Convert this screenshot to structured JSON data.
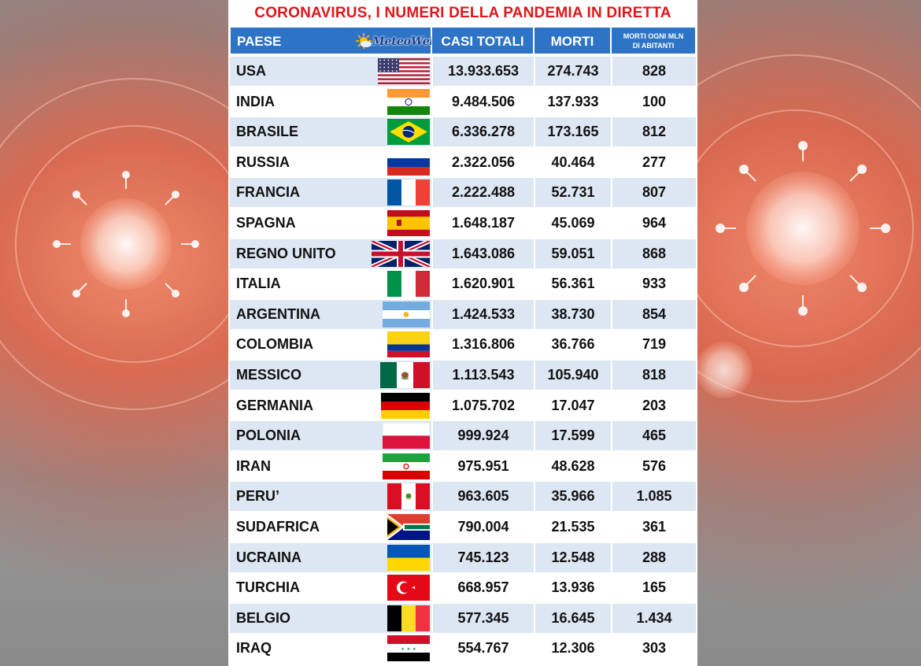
{
  "title": "CORONAVIRUS, I NUMERI DELLA PANDEMIA IN DIRETTA",
  "logo": {
    "text": "MeteoWeb"
  },
  "colors": {
    "title": "#e0151b",
    "header": "#2e74c6",
    "row_alt": "#dde6f3"
  },
  "headers": {
    "country": "PAESE",
    "cases": "CASI TOTALI",
    "deaths": "MORTI",
    "per_million_1": "MORTI OGNI MLN",
    "per_million_2": "DI ABITANTI"
  },
  "rows": [
    {
      "country": "USA",
      "flag": "us-flag",
      "cases": "13.933.653",
      "deaths": "274.743",
      "per_million": "828"
    },
    {
      "country": "INDIA",
      "flag": "india-flag",
      "cases": "9.484.506",
      "deaths": "137.933",
      "per_million": "100"
    },
    {
      "country": "BRASILE",
      "flag": "brazil-flag",
      "cases": "6.336.278",
      "deaths": "173.165",
      "per_million": "812"
    },
    {
      "country": "RUSSIA",
      "flag": "russia-flag",
      "cases": "2.322.056",
      "deaths": "40.464",
      "per_million": "277"
    },
    {
      "country": "FRANCIA",
      "flag": "france-flag",
      "cases": "2.222.488",
      "deaths": "52.731",
      "per_million": "807"
    },
    {
      "country": "SPAGNA",
      "flag": "spain-flag",
      "cases": "1.648.187",
      "deaths": "45.069",
      "per_million": "964"
    },
    {
      "country": "REGNO UNITO",
      "flag": "uk-flag",
      "cases": "1.643.086",
      "deaths": "59.051",
      "per_million": "868"
    },
    {
      "country": "ITALIA",
      "flag": "italy-flag",
      "cases": "1.620.901",
      "deaths": "56.361",
      "per_million": "933"
    },
    {
      "country": "ARGENTINA",
      "flag": "argentina-flag",
      "cases": "1.424.533",
      "deaths": "38.730",
      "per_million": "854"
    },
    {
      "country": "COLOMBIA",
      "flag": "colombia-flag",
      "cases": "1.316.806",
      "deaths": "36.766",
      "per_million": "719"
    },
    {
      "country": "MESSICO",
      "flag": "mexico-flag",
      "cases": "1.113.543",
      "deaths": "105.940",
      "per_million": "818"
    },
    {
      "country": "GERMANIA",
      "flag": "germany-flag",
      "cases": "1.075.702",
      "deaths": "17.047",
      "per_million": "203"
    },
    {
      "country": "POLONIA",
      "flag": "poland-flag",
      "cases": "999.924",
      "deaths": "17.599",
      "per_million": "465"
    },
    {
      "country": "IRAN",
      "flag": "iran-flag",
      "cases": "975.951",
      "deaths": "48.628",
      "per_million": "576"
    },
    {
      "country": "PERU’",
      "flag": "peru-flag",
      "cases": "963.605",
      "deaths": "35.966",
      "per_million": "1.085"
    },
    {
      "country": "SUDAFRICA",
      "flag": "south-africa-flag",
      "cases": "790.004",
      "deaths": "21.535",
      "per_million": "361"
    },
    {
      "country": "UCRAINA",
      "flag": "ukraine-flag",
      "cases": "745.123",
      "deaths": "12.548",
      "per_million": "288"
    },
    {
      "country": "TURCHIA",
      "flag": "turkey-flag",
      "cases": "668.957",
      "deaths": "13.936",
      "per_million": "165"
    },
    {
      "country": "BELGIO",
      "flag": "belgium-flag",
      "cases": "577.345",
      "deaths": "16.645",
      "per_million": "1.434"
    },
    {
      "country": "IRAQ",
      "flag": "iraq-flag",
      "cases": "554.767",
      "deaths": "12.306",
      "per_million": "303"
    }
  ]
}
